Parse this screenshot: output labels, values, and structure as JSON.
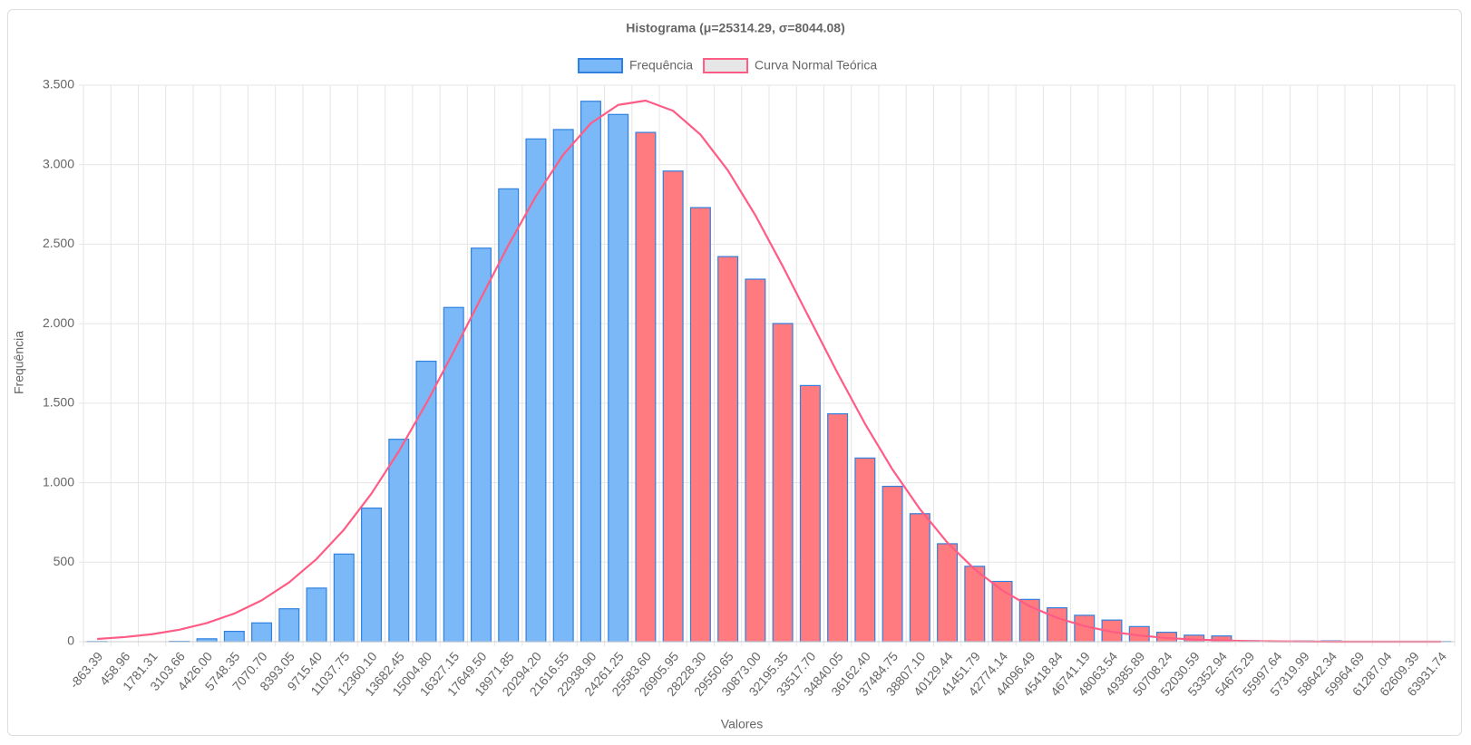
{
  "chart_data": {
    "type": "bar",
    "title": "Histograma (μ=25314.29, σ=8044.08)",
    "x_label": "Valores",
    "y_label": "Frequência",
    "categories": [
      "-863.39",
      "458.96",
      "1781.31",
      "3103.66",
      "4426.00",
      "5748.35",
      "7070.70",
      "8393.05",
      "9715.40",
      "11037.75",
      "12360.10",
      "13682.45",
      "15004.80",
      "16327.15",
      "17649.50",
      "18971.85",
      "20294.20",
      "21616.55",
      "22938.90",
      "24261.25",
      "25583.60",
      "26905.95",
      "28228.30",
      "29550.65",
      "30873.00",
      "32195.35",
      "33517.70",
      "34840.05",
      "36162.40",
      "37484.75",
      "38807.10",
      "40129.44",
      "41451.79",
      "42774.14",
      "44096.49",
      "45418.84",
      "46741.19",
      "48063.54",
      "49385.89",
      "50708.24",
      "52030.59",
      "53352.94",
      "54675.29",
      "55997.64",
      "57319.99",
      "58642.34",
      "59964.69",
      "61287.04",
      "62609.39",
      "63931.74"
    ],
    "series": [
      {
        "name": "Frequência",
        "type": "bar",
        "color": "#7ab8f7",
        "border_color": "#2f80e0",
        "colors": [
          "#7ab8f7",
          "#7ab8f7",
          "#7ab8f7",
          "#7ab8f7",
          "#7ab8f7",
          "#7ab8f7",
          "#7ab8f7",
          "#7ab8f7",
          "#7ab8f7",
          "#7ab8f7",
          "#7ab8f7",
          "#7ab8f7",
          "#7ab8f7",
          "#7ab8f7",
          "#7ab8f7",
          "#7ab8f7",
          "#7ab8f7",
          "#7ab8f7",
          "#7ab8f7",
          "#7ab8f7",
          "#ff7b7f",
          "#ff7b7f",
          "#ff7b7f",
          "#ff7b7f",
          "#ff7b7f",
          "#ff7b7f",
          "#ff7b7f",
          "#ff7b7f",
          "#ff7b7f",
          "#ff7b7f",
          "#ff7b7f",
          "#ff7b7f",
          "#ff7b7f",
          "#ff7b7f",
          "#ff7b7f",
          "#ff7b7f",
          "#ff7b7f",
          "#ff7b7f",
          "#ff7b7f",
          "#ff7b7f",
          "#ff7b7f",
          "#ff7b7f",
          "#ff7b7f",
          "#ff7b7f",
          "#ff7b7f",
          "#ff7b7f",
          "#ff7b7f",
          "#ff7b7f",
          "#ff7b7f",
          "#ff7b7f"
        ],
        "values": [
          1,
          0,
          0,
          2,
          18,
          65,
          118,
          207,
          337,
          551,
          840,
          1273,
          1764,
          2102,
          2475,
          2848,
          3162,
          3221,
          3399,
          3316,
          3203,
          2960,
          2730,
          2422,
          2280,
          2001,
          1611,
          1433,
          1155,
          977,
          805,
          616,
          474,
          379,
          266,
          213,
          166,
          136,
          95,
          59,
          41,
          36,
          6,
          2,
          4,
          5,
          1,
          1,
          1,
          1
        ]
      },
      {
        "name": "Curva Normal Teórica",
        "type": "line",
        "color": "#ff5c85",
        "legend_fill": "#e6e6e6",
        "values": [
          17,
          29,
          47,
          75,
          117,
          177,
          260,
          373,
          520,
          705,
          931,
          1197,
          1498,
          1825,
          2162,
          2495,
          2802,
          3064,
          3260,
          3376,
          3403,
          3339,
          3189,
          2964,
          2682,
          2361,
          2024,
          1689,
          1370,
          1083,
          834,
          624,
          455,
          323,
          223,
          150,
          98,
          62,
          39,
          23,
          14,
          8,
          4,
          2,
          1,
          0,
          0,
          0,
          0,
          0
        ]
      }
    ],
    "ylim": [
      0,
      3500
    ],
    "yticks": [
      0,
      500,
      {
        "value": 1000,
        "label": "1.000"
      },
      {
        "value": 1500,
        "label": "1.500"
      },
      {
        "value": 2000,
        "label": "2.000"
      },
      {
        "value": 2500,
        "label": "2.500"
      },
      {
        "value": 3000,
        "label": "3.000"
      },
      {
        "value": 3500,
        "label": "3.500"
      }
    ],
    "grid": true,
    "legend": "top"
  }
}
